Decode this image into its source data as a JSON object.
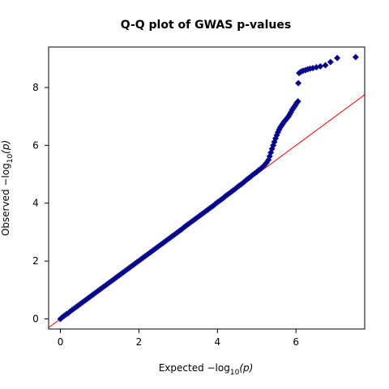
{
  "chart_data": {
    "type": "scatter",
    "title": "Q-Q plot of GWAS p-values",
    "xlabel": "Expected  −log10(p)",
    "ylabel": "Observed  −log10(p)",
    "xlabel_parts": {
      "main": "Expected  −log",
      "sub": "10",
      "tail": "(p)"
    },
    "ylabel_parts": {
      "main": "Observed  −log",
      "sub": "10",
      "tail": "(p)"
    },
    "xlim": [
      -0.3,
      7.75
    ],
    "ylim": [
      -0.35,
      9.4
    ],
    "x_ticks": [
      0,
      2,
      4,
      6
    ],
    "y_ticks": [
      0,
      2,
      4,
      6,
      8
    ],
    "grid": false,
    "legend": "none",
    "colors": {
      "points": "#00008b",
      "points_edge": "#1a1a8c",
      "reference_line": "#ff0000"
    },
    "reference_line": {
      "slope": 1,
      "intercept": 0
    },
    "series": [
      {
        "marker": "diamond",
        "points": [
          [
            0.0,
            0.0
          ],
          [
            0.05,
            0.06
          ],
          [
            0.1,
            0.11
          ],
          [
            0.15,
            0.16
          ],
          [
            0.2,
            0.2
          ],
          [
            0.25,
            0.26
          ],
          [
            0.3,
            0.31
          ],
          [
            0.35,
            0.36
          ],
          [
            0.4,
            0.41
          ],
          [
            0.45,
            0.46
          ],
          [
            0.5,
            0.51
          ],
          [
            0.55,
            0.56
          ],
          [
            0.6,
            0.61
          ],
          [
            0.65,
            0.66
          ],
          [
            0.7,
            0.71
          ],
          [
            0.75,
            0.76
          ],
          [
            0.8,
            0.81
          ],
          [
            0.85,
            0.86
          ],
          [
            0.9,
            0.91
          ],
          [
            0.95,
            0.96
          ],
          [
            1.0,
            1.01
          ],
          [
            1.05,
            1.06
          ],
          [
            1.1,
            1.11
          ],
          [
            1.15,
            1.16
          ],
          [
            1.2,
            1.21
          ],
          [
            1.25,
            1.26
          ],
          [
            1.3,
            1.31
          ],
          [
            1.35,
            1.36
          ],
          [
            1.4,
            1.41
          ],
          [
            1.45,
            1.46
          ],
          [
            1.5,
            1.51
          ],
          [
            1.55,
            1.56
          ],
          [
            1.6,
            1.61
          ],
          [
            1.65,
            1.66
          ],
          [
            1.7,
            1.71
          ],
          [
            1.75,
            1.76
          ],
          [
            1.8,
            1.81
          ],
          [
            1.85,
            1.86
          ],
          [
            1.9,
            1.91
          ],
          [
            1.95,
            1.96
          ],
          [
            2.0,
            2.01
          ],
          [
            2.05,
            2.06
          ],
          [
            2.1,
            2.11
          ],
          [
            2.15,
            2.16
          ],
          [
            2.2,
            2.21
          ],
          [
            2.25,
            2.26
          ],
          [
            2.3,
            2.31
          ],
          [
            2.35,
            2.36
          ],
          [
            2.4,
            2.41
          ],
          [
            2.45,
            2.46
          ],
          [
            2.5,
            2.51
          ],
          [
            2.55,
            2.56
          ],
          [
            2.6,
            2.61
          ],
          [
            2.65,
            2.66
          ],
          [
            2.7,
            2.71
          ],
          [
            2.75,
            2.76
          ],
          [
            2.8,
            2.81
          ],
          [
            2.85,
            2.86
          ],
          [
            2.9,
            2.91
          ],
          [
            2.95,
            2.96
          ],
          [
            3.0,
            3.01
          ],
          [
            3.05,
            3.06
          ],
          [
            3.1,
            3.11
          ],
          [
            3.15,
            3.17
          ],
          [
            3.2,
            3.22
          ],
          [
            3.25,
            3.27
          ],
          [
            3.3,
            3.32
          ],
          [
            3.35,
            3.37
          ],
          [
            3.4,
            3.42
          ],
          [
            3.45,
            3.47
          ],
          [
            3.5,
            3.52
          ],
          [
            3.55,
            3.57
          ],
          [
            3.6,
            3.62
          ],
          [
            3.65,
            3.67
          ],
          [
            3.7,
            3.72
          ],
          [
            3.75,
            3.77
          ],
          [
            3.8,
            3.82
          ],
          [
            3.85,
            3.87
          ],
          [
            3.9,
            3.92
          ],
          [
            3.95,
            3.98
          ],
          [
            4.0,
            4.03
          ],
          [
            4.05,
            4.08
          ],
          [
            4.1,
            4.13
          ],
          [
            4.15,
            4.18
          ],
          [
            4.2,
            4.24
          ],
          [
            4.25,
            4.29
          ],
          [
            4.3,
            4.34
          ],
          [
            4.35,
            4.39
          ],
          [
            4.4,
            4.44
          ],
          [
            4.45,
            4.49
          ],
          [
            4.5,
            4.55
          ],
          [
            4.55,
            4.6
          ],
          [
            4.6,
            4.65
          ],
          [
            4.65,
            4.7
          ],
          [
            4.7,
            4.76
          ],
          [
            4.75,
            4.82
          ],
          [
            4.8,
            4.87
          ],
          [
            4.85,
            4.92
          ],
          [
            4.9,
            4.98
          ],
          [
            4.95,
            5.03
          ],
          [
            5.0,
            5.08
          ],
          [
            5.05,
            5.14
          ],
          [
            5.1,
            5.19
          ],
          [
            5.15,
            5.25
          ],
          [
            5.2,
            5.32
          ],
          [
            5.25,
            5.4
          ],
          [
            5.3,
            5.5
          ],
          [
            5.33,
            5.62
          ],
          [
            5.36,
            5.75
          ],
          [
            5.39,
            5.88
          ],
          [
            5.42,
            6.0
          ],
          [
            5.45,
            6.12
          ],
          [
            5.48,
            6.24
          ],
          [
            5.51,
            6.35
          ],
          [
            5.54,
            6.45
          ],
          [
            5.57,
            6.54
          ],
          [
            5.6,
            6.62
          ],
          [
            5.63,
            6.68
          ],
          [
            5.66,
            6.74
          ],
          [
            5.69,
            6.8
          ],
          [
            5.72,
            6.85
          ],
          [
            5.75,
            6.9
          ],
          [
            5.78,
            6.95
          ],
          [
            5.81,
            7.0
          ],
          [
            5.84,
            7.07
          ],
          [
            5.87,
            7.14
          ],
          [
            5.9,
            7.22
          ],
          [
            5.93,
            7.28
          ],
          [
            5.96,
            7.34
          ],
          [
            5.99,
            7.4
          ],
          [
            6.02,
            7.47
          ],
          [
            6.05,
            7.52
          ],
          [
            6.06,
            8.15
          ],
          [
            6.08,
            8.5
          ],
          [
            6.13,
            8.55
          ],
          [
            6.18,
            8.58
          ],
          [
            6.24,
            8.6
          ],
          [
            6.3,
            8.63
          ],
          [
            6.36,
            8.65
          ],
          [
            6.43,
            8.67
          ],
          [
            6.52,
            8.7
          ],
          [
            6.62,
            8.73
          ],
          [
            6.75,
            8.77
          ],
          [
            6.88,
            8.88
          ],
          [
            7.05,
            9.02
          ],
          [
            7.52,
            9.05
          ]
        ]
      }
    ]
  }
}
